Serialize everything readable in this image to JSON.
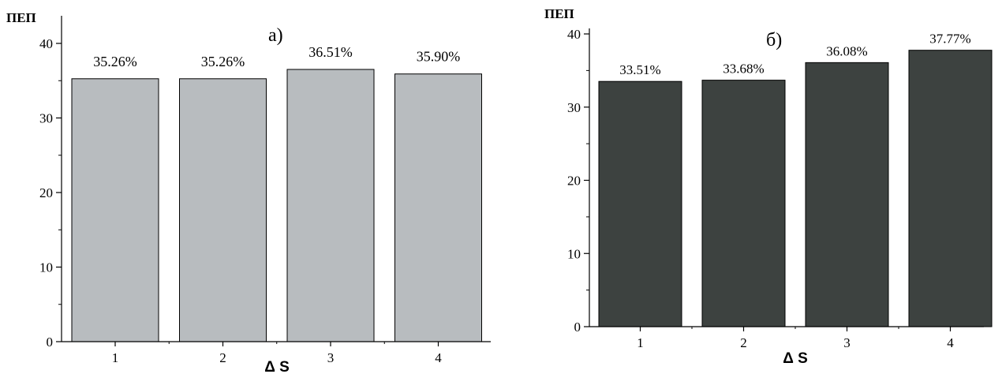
{
  "chart_data": [
    {
      "type": "bar",
      "panel_label": "а)",
      "ylabel": "ПЕП",
      "xlabel": "Δ S",
      "categories": [
        "1",
        "2",
        "3",
        "4"
      ],
      "values": [
        35.26,
        35.26,
        36.51,
        35.9
      ],
      "data_labels": [
        "35.26%",
        "35.26%",
        "36.51%",
        "35.90%"
      ],
      "ylim": [
        0,
        40
      ],
      "yticks": [
        "0",
        "10",
        "20",
        "30",
        "40"
      ],
      "grid": false,
      "legend": "none",
      "bar_color": "#b8bcbf"
    },
    {
      "type": "bar",
      "panel_label": "б)",
      "ylabel": "ПЕП",
      "xlabel": "Δ S",
      "categories": [
        "1",
        "2",
        "3",
        "4"
      ],
      "values": [
        33.51,
        33.68,
        36.08,
        37.77
      ],
      "data_labels": [
        "33.51%",
        "33.68%",
        "36.08%",
        "37.77%"
      ],
      "ylim": [
        0,
        40
      ],
      "yticks": [
        "0",
        "10",
        "20",
        "30",
        "40"
      ],
      "grid": false,
      "legend": "none",
      "bar_color": "#3d4240"
    }
  ]
}
